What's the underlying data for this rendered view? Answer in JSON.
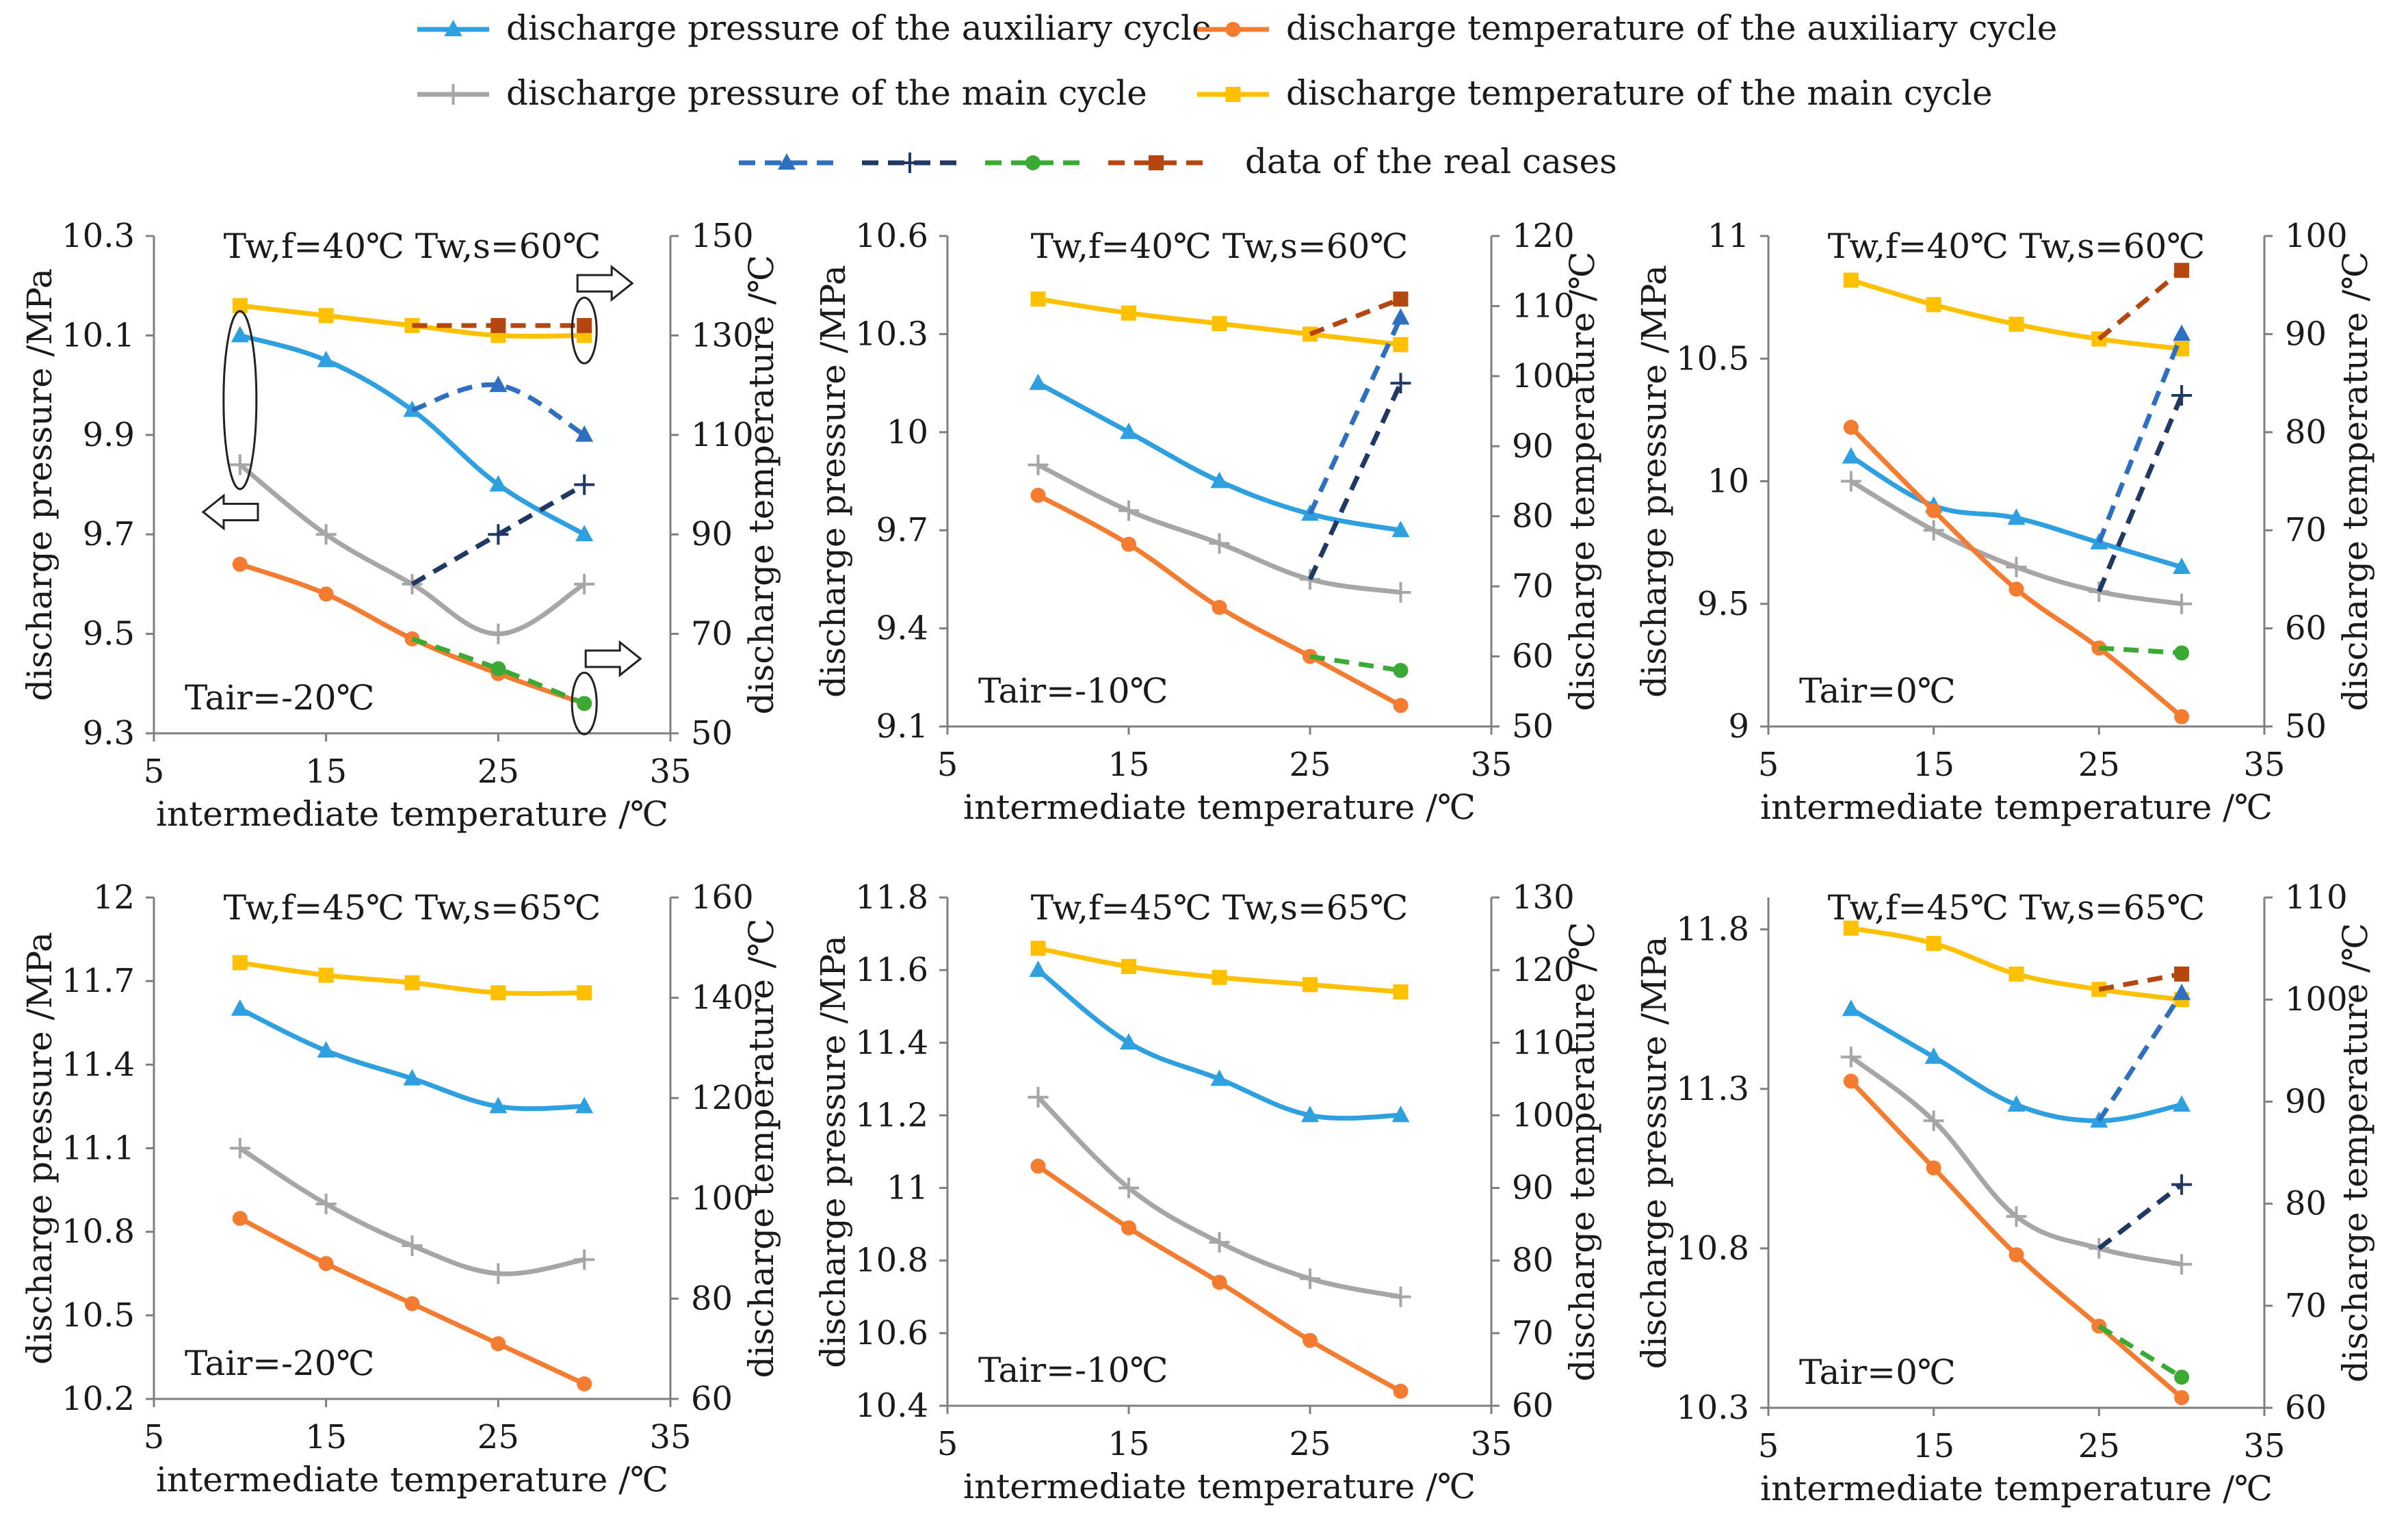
{
  "colors": {
    "aux_pressure": "#2E9FDF",
    "aux_temperature": "#F47C30",
    "main_pressure": "#A6A6A6",
    "main_temperature": "#FFC000",
    "real_aux_pressure": "#2F6FBF",
    "real_main_pressure": "#203864",
    "real_aux_temperature": "#3AAA35",
    "real_main_temperature": "#B5460F",
    "axis": "#7f7f7f"
  },
  "legend": {
    "aux_pressure": "discharge pressure of the auxiliary cycle",
    "aux_temperature": "discharge temperature of the auxiliary cycle",
    "main_pressure": "discharge pressure of the main cycle",
    "main_temperature": "discharge temperature of the main cycle",
    "real_cases": "data of the real cases"
  },
  "chart_data": [
    {
      "type": "line",
      "title": "Tw,f=40℃ Tw,s=60℃",
      "condition": "Tair=-20℃",
      "xlabel": "intermediate temperature /℃",
      "ylabel": "discharge pressure /MPa",
      "y2label": "discharge temperature /℃",
      "xlim": [
        5,
        35
      ],
      "ylim": [
        9.3,
        10.3
      ],
      "y2lim": [
        50,
        150
      ],
      "xticks": [
        "5",
        "15",
        "25",
        "35"
      ],
      "yticks": [
        "9.3",
        "9.5",
        "9.7",
        "9.9",
        "10.1",
        "10.3"
      ],
      "y2ticks": [
        "50",
        "70",
        "90",
        "110",
        "130",
        "150"
      ],
      "x": [
        10,
        15,
        20,
        25,
        30
      ],
      "series": [
        {
          "name": "discharge pressure of the auxiliary cycle",
          "axis": "left",
          "values": [
            10.1,
            10.05,
            9.95,
            9.8,
            9.7
          ]
        },
        {
          "name": "discharge pressure of the main cycle",
          "axis": "left",
          "values": [
            9.84,
            9.7,
            9.6,
            9.5,
            9.6
          ]
        },
        {
          "name": "discharge temperature of the auxiliary cycle",
          "axis": "right",
          "values": [
            84,
            78,
            69,
            62,
            56
          ]
        },
        {
          "name": "discharge temperature of the main cycle",
          "axis": "right",
          "values": [
            136,
            134,
            132,
            130,
            130
          ]
        }
      ],
      "real_cases": [
        {
          "name": "real auxiliary discharge pressure",
          "axis": "left",
          "x": [
            20,
            25,
            30
          ],
          "values": [
            9.95,
            10.0,
            9.9
          ]
        },
        {
          "name": "real main discharge pressure",
          "axis": "left",
          "x": [
            20,
            25,
            30
          ],
          "values": [
            9.6,
            9.7,
            9.8
          ]
        },
        {
          "name": "real auxiliary discharge temperature",
          "axis": "right",
          "x": [
            20,
            25,
            30
          ],
          "values": [
            69,
            63,
            56
          ]
        },
        {
          "name": "real main discharge temperature",
          "axis": "right",
          "x": [
            20,
            25,
            30
          ],
          "values": [
            132,
            132,
            132
          ]
        }
      ],
      "annotations": "ellipses and arrows mark which curves belong to the left and right axes"
    },
    {
      "type": "line",
      "title": "Tw,f=40℃ Tw,s=60℃",
      "condition": "Tair=-10℃",
      "xlabel": "intermediate temperature /℃",
      "ylabel": "discharge pressure /MPa",
      "y2label": "discharge temperature /℃",
      "xlim": [
        5,
        35
      ],
      "ylim": [
        9.1,
        10.6
      ],
      "y2lim": [
        50,
        120
      ],
      "xticks": [
        "5",
        "15",
        "25",
        "35"
      ],
      "yticks": [
        "9.1",
        "9.4",
        "9.7",
        "10",
        "10.3",
        "10.6"
      ],
      "y2ticks": [
        "50",
        "60",
        "70",
        "80",
        "90",
        "100",
        "110",
        "120"
      ],
      "x": [
        10,
        15,
        20,
        25,
        30
      ],
      "series": [
        {
          "name": "discharge pressure of the auxiliary cycle",
          "axis": "left",
          "values": [
            10.15,
            10.0,
            9.85,
            9.75,
            9.7
          ]
        },
        {
          "name": "discharge pressure of the main cycle",
          "axis": "left",
          "values": [
            9.9,
            9.76,
            9.66,
            9.55,
            9.51
          ]
        },
        {
          "name": "discharge temperature of the auxiliary cycle",
          "axis": "right",
          "values": [
            83,
            76,
            67,
            60,
            53
          ]
        },
        {
          "name": "discharge temperature of the main cycle",
          "axis": "right",
          "values": [
            111,
            109,
            107.5,
            106,
            104.5
          ]
        }
      ],
      "real_cases": [
        {
          "name": "real auxiliary discharge pressure",
          "axis": "left",
          "x": [
            25,
            30
          ],
          "values": [
            9.75,
            10.35
          ]
        },
        {
          "name": "real main discharge pressure",
          "axis": "left",
          "x": [
            25,
            30
          ],
          "values": [
            9.55,
            10.15
          ]
        },
        {
          "name": "real auxiliary discharge temperature",
          "axis": "right",
          "x": [
            25,
            30
          ],
          "values": [
            60,
            58
          ]
        },
        {
          "name": "real main discharge temperature",
          "axis": "right",
          "x": [
            25,
            30
          ],
          "values": [
            106,
            111
          ]
        }
      ]
    },
    {
      "type": "line",
      "title": "Tw,f=40℃ Tw,s=60℃",
      "condition": "Tair=0℃",
      "xlabel": "intermediate temperature /℃",
      "ylabel": "discharge pressure /MPa",
      "y2label": "discharge temperature /℃",
      "xlim": [
        5,
        35
      ],
      "ylim": [
        9,
        11
      ],
      "y2lim": [
        50,
        100
      ],
      "xticks": [
        "5",
        "15",
        "25",
        "35"
      ],
      "yticks": [
        "9",
        "9.5",
        "10",
        "10.5",
        "11"
      ],
      "y2ticks": [
        "50",
        "60",
        "70",
        "80",
        "90",
        "100"
      ],
      "x": [
        10,
        15,
        20,
        25,
        30
      ],
      "series": [
        {
          "name": "discharge pressure of the auxiliary cycle",
          "axis": "left",
          "values": [
            10.1,
            9.9,
            9.85,
            9.75,
            9.65
          ]
        },
        {
          "name": "discharge pressure of the main cycle",
          "axis": "left",
          "values": [
            10.0,
            9.8,
            9.65,
            9.55,
            9.5
          ]
        },
        {
          "name": "discharge temperature of the auxiliary cycle",
          "axis": "right",
          "values": [
            80.5,
            72,
            64,
            58,
            51
          ]
        },
        {
          "name": "discharge temperature of the main cycle",
          "axis": "right",
          "values": [
            95.5,
            93,
            91,
            89.5,
            88.5
          ]
        }
      ],
      "real_cases": [
        {
          "name": "real auxiliary discharge pressure",
          "axis": "left",
          "x": [
            25,
            30
          ],
          "values": [
            9.75,
            10.6
          ]
        },
        {
          "name": "real main discharge pressure",
          "axis": "left",
          "x": [
            25,
            30
          ],
          "values": [
            9.55,
            10.35
          ]
        },
        {
          "name": "real auxiliary discharge temperature",
          "axis": "right",
          "x": [
            25,
            30
          ],
          "values": [
            58,
            57.5
          ]
        },
        {
          "name": "real main discharge temperature",
          "axis": "right",
          "x": [
            25,
            30
          ],
          "values": [
            89.5,
            96.5
          ]
        }
      ]
    },
    {
      "type": "line",
      "title": "Tw,f=45℃ Tw,s=65℃",
      "condition": "Tair=-20℃",
      "xlabel": "intermediate temperature /℃",
      "ylabel": "discharge pressure /MPa",
      "y2label": "discharge temperature /℃",
      "xlim": [
        5,
        35
      ],
      "ylim": [
        10.2,
        12
      ],
      "y2lim": [
        60,
        160
      ],
      "xticks": [
        "5",
        "15",
        "25",
        "35"
      ],
      "yticks": [
        "10.2",
        "10.5",
        "10.8",
        "11.1",
        "11.4",
        "11.7",
        "12"
      ],
      "y2ticks": [
        "60",
        "80",
        "100",
        "120",
        "140",
        "160"
      ],
      "x": [
        10,
        15,
        20,
        25,
        30
      ],
      "series": [
        {
          "name": "discharge pressure of the auxiliary cycle",
          "axis": "left",
          "values": [
            11.6,
            11.45,
            11.35,
            11.25,
            11.25
          ]
        },
        {
          "name": "discharge pressure of the main cycle",
          "axis": "left",
          "values": [
            11.1,
            10.9,
            10.75,
            10.65,
            10.7
          ]
        },
        {
          "name": "discharge temperature of the auxiliary cycle",
          "axis": "right",
          "values": [
            96,
            87,
            79,
            71,
            63
          ]
        },
        {
          "name": "discharge temperature of the main cycle",
          "axis": "right",
          "values": [
            147,
            144.5,
            143,
            141,
            141
          ]
        }
      ],
      "real_cases": []
    },
    {
      "type": "line",
      "title": "Tw,f=45℃ Tw,s=65℃",
      "condition": "Tair=-10℃",
      "xlabel": "intermediate temperature /℃",
      "ylabel": "discharge pressure /MPa",
      "y2label": "discharge temperature /℃",
      "xlim": [
        5,
        35
      ],
      "ylim": [
        10.4,
        11.8
      ],
      "y2lim": [
        60,
        130
      ],
      "xticks": [
        "5",
        "15",
        "25",
        "35"
      ],
      "yticks": [
        "10.4",
        "10.6",
        "10.8",
        "11",
        "11.2",
        "11.4",
        "11.6",
        "11.8"
      ],
      "y2ticks": [
        "60",
        "70",
        "80",
        "90",
        "100",
        "110",
        "120",
        "130"
      ],
      "x": [
        10,
        15,
        20,
        25,
        30
      ],
      "series": [
        {
          "name": "discharge pressure of the auxiliary cycle",
          "axis": "left",
          "values": [
            11.6,
            11.4,
            11.3,
            11.2,
            11.2
          ]
        },
        {
          "name": "discharge pressure of the main cycle",
          "axis": "left",
          "values": [
            11.25,
            11.0,
            10.85,
            10.75,
            10.7
          ]
        },
        {
          "name": "discharge temperature of the auxiliary cycle",
          "axis": "right",
          "values": [
            93,
            84.5,
            77,
            69,
            62
          ]
        },
        {
          "name": "discharge temperature of the main cycle",
          "axis": "right",
          "values": [
            123,
            120.5,
            119,
            118,
            117
          ]
        }
      ],
      "real_cases": []
    },
    {
      "type": "line",
      "title": "Tw,f=45℃ Tw,s=65℃",
      "condition": "Tair=0℃",
      "xlabel": "intermediate temperature /℃",
      "ylabel": "discharge pressure /MPa",
      "y2label": "discharge temperature /℃",
      "xlim": [
        5,
        35
      ],
      "ylim": [
        10.3,
        11.9
      ],
      "y2lim": [
        60,
        110
      ],
      "xticks": [
        "5",
        "15",
        "25",
        "35"
      ],
      "yticks": [
        "10.3",
        "10.8",
        "11.3",
        "11.8"
      ],
      "y2ticks": [
        "60",
        "70",
        "80",
        "90",
        "100",
        "110"
      ],
      "x": [
        10,
        15,
        20,
        25,
        30
      ],
      "series": [
        {
          "name": "discharge pressure of the auxiliary cycle",
          "axis": "left",
          "values": [
            11.55,
            11.4,
            11.25,
            11.2,
            11.25
          ]
        },
        {
          "name": "discharge pressure of the main cycle",
          "axis": "left",
          "values": [
            11.4,
            11.2,
            10.9,
            10.8,
            10.75
          ]
        },
        {
          "name": "discharge temperature of the auxiliary cycle",
          "axis": "right",
          "values": [
            92,
            83.5,
            75,
            68,
            61
          ]
        },
        {
          "name": "discharge temperature of the main cycle",
          "axis": "right",
          "values": [
            107,
            105.5,
            102.5,
            101,
            100
          ]
        }
      ],
      "real_cases": [
        {
          "name": "real auxiliary discharge pressure",
          "axis": "left",
          "x": [
            25,
            30
          ],
          "values": [
            11.2,
            11.6
          ]
        },
        {
          "name": "real main discharge pressure",
          "axis": "left",
          "x": [
            25,
            30
          ],
          "values": [
            10.8,
            11.0
          ]
        },
        {
          "name": "real auxiliary discharge temperature",
          "axis": "right",
          "x": [
            25,
            30
          ],
          "values": [
            68,
            63
          ]
        },
        {
          "name": "real main discharge temperature",
          "axis": "right",
          "x": [
            25,
            30
          ],
          "values": [
            101,
            102.5
          ]
        }
      ]
    }
  ]
}
